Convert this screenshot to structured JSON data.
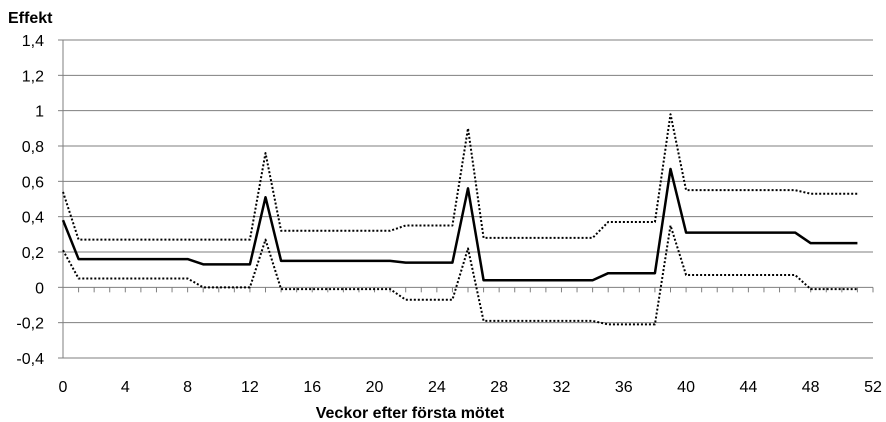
{
  "chart_data": {
    "type": "line",
    "ylabel": "Effekt",
    "xlabel": "Veckor efter första mötet",
    "ylim": [
      -0.4,
      1.4
    ],
    "xlim": [
      0,
      52
    ],
    "yticks": [
      "-0,4",
      "-0,2",
      "0",
      "0,2",
      "0,4",
      "0,6",
      "0,8",
      "1",
      "1,2",
      "1,4"
    ],
    "xticks": [
      "0",
      "4",
      "8",
      "12",
      "16",
      "20",
      "24",
      "28",
      "32",
      "36",
      "40",
      "44",
      "48",
      "52"
    ],
    "grid": "horizontal",
    "x": [
      0,
      1,
      2,
      3,
      4,
      5,
      6,
      7,
      8,
      9,
      10,
      11,
      12,
      13,
      14,
      15,
      16,
      17,
      18,
      19,
      20,
      21,
      22,
      23,
      24,
      25,
      26,
      27,
      28,
      29,
      30,
      31,
      32,
      33,
      34,
      35,
      36,
      37,
      38,
      39,
      40,
      41,
      42,
      43,
      44,
      45,
      46,
      47,
      48,
      49,
      50,
      51
    ],
    "series": [
      {
        "style": "solid",
        "color": "#000000",
        "values": [
          0.38,
          0.16,
          0.16,
          0.16,
          0.16,
          0.16,
          0.16,
          0.16,
          0.16,
          0.13,
          0.13,
          0.13,
          0.13,
          0.51,
          0.15,
          0.15,
          0.15,
          0.15,
          0.15,
          0.15,
          0.15,
          0.15,
          0.14,
          0.14,
          0.14,
          0.14,
          0.56,
          0.04,
          0.04,
          0.04,
          0.04,
          0.04,
          0.04,
          0.04,
          0.04,
          0.08,
          0.08,
          0.08,
          0.08,
          0.67,
          0.31,
          0.31,
          0.31,
          0.31,
          0.31,
          0.31,
          0.31,
          0.31,
          0.25,
          0.25,
          0.25,
          0.25
        ]
      },
      {
        "style": "dotted",
        "color": "#000000",
        "values": [
          0.54,
          0.27,
          0.27,
          0.27,
          0.27,
          0.27,
          0.27,
          0.27,
          0.27,
          0.27,
          0.27,
          0.27,
          0.27,
          0.76,
          0.32,
          0.32,
          0.32,
          0.32,
          0.32,
          0.32,
          0.32,
          0.32,
          0.35,
          0.35,
          0.35,
          0.35,
          0.9,
          0.28,
          0.28,
          0.28,
          0.28,
          0.28,
          0.28,
          0.28,
          0.28,
          0.37,
          0.37,
          0.37,
          0.37,
          0.98,
          0.55,
          0.55,
          0.55,
          0.55,
          0.55,
          0.55,
          0.55,
          0.55,
          0.53,
          0.53,
          0.53,
          0.53
        ]
      },
      {
        "style": "dotted",
        "color": "#000000",
        "values": [
          0.21,
          0.05,
          0.05,
          0.05,
          0.05,
          0.05,
          0.05,
          0.05,
          0.05,
          0.0,
          0.0,
          0.0,
          0.0,
          0.27,
          -0.01,
          -0.01,
          -0.01,
          -0.01,
          -0.01,
          -0.01,
          -0.01,
          -0.01,
          -0.07,
          -0.07,
          -0.07,
          -0.07,
          0.22,
          -0.19,
          -0.19,
          -0.19,
          -0.19,
          -0.19,
          -0.19,
          -0.19,
          -0.19,
          -0.21,
          -0.21,
          -0.21,
          -0.21,
          0.35,
          0.07,
          0.07,
          0.07,
          0.07,
          0.07,
          0.07,
          0.07,
          0.07,
          -0.01,
          -0.01,
          -0.01,
          -0.01
        ]
      }
    ],
    "colors": {
      "grid": "#7f7f7f",
      "axis": "#7f7f7f",
      "line": "#000000"
    }
  }
}
